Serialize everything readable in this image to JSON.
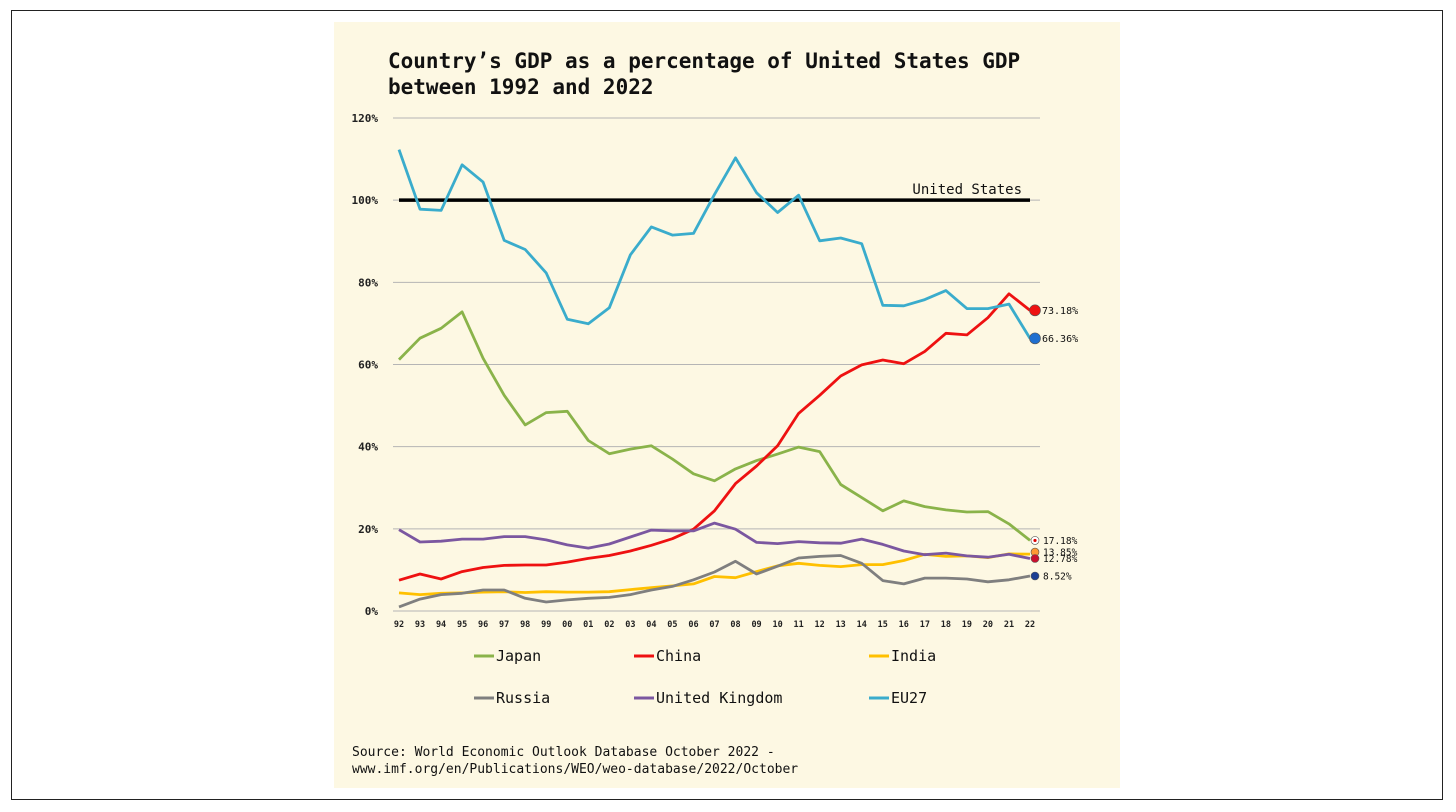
{
  "chart_data": {
    "type": "line",
    "title_lines": [
      "Country’s GDP as a percentage of United States GDP",
      "between 1992 and 2022"
    ],
    "x": [
      "92",
      "93",
      "94",
      "95",
      "96",
      "97",
      "98",
      "99",
      "00",
      "01",
      "02",
      "03",
      "04",
      "05",
      "06",
      "07",
      "08",
      "09",
      "10",
      "11",
      "12",
      "13",
      "14",
      "15",
      "16",
      "17",
      "18",
      "19",
      "20",
      "21",
      "22"
    ],
    "ylim": [
      0,
      120
    ],
    "yticks": [
      0,
      20,
      40,
      60,
      80,
      100,
      120
    ],
    "ytick_labels": [
      "0%",
      "20%",
      "40%",
      "60%",
      "80%",
      "100%",
      "120%"
    ],
    "grid": true,
    "reference_line": {
      "name": "United States",
      "value": 100,
      "color": "#000000"
    },
    "series": [
      {
        "name": "Japan",
        "color": "#8ab34a",
        "values": [
          61.2,
          66.4,
          68.8,
          72.8,
          61.5,
          52.5,
          45.3,
          48.3,
          48.6,
          41.5,
          38.3,
          39.4,
          40.2,
          37.0,
          33.4,
          31.7,
          34.6,
          36.6,
          38.2,
          39.9,
          38.8,
          30.8,
          27.6,
          24.4,
          26.8,
          25.4,
          24.6,
          24.1,
          24.2,
          21.2,
          17.18
        ]
      },
      {
        "name": "China",
        "color": "#ee1111",
        "values": [
          7.5,
          9.0,
          7.8,
          9.6,
          10.6,
          11.1,
          11.2,
          11.2,
          11.9,
          12.8,
          13.5,
          14.6,
          16.0,
          17.6,
          19.9,
          24.4,
          31.0,
          35.3,
          40.2,
          48.1,
          52.5,
          57.2,
          59.9,
          61.1,
          60.2,
          63.2,
          67.6,
          67.2,
          71.4,
          77.2,
          73.18
        ]
      },
      {
        "name": "India",
        "color": "#ffc000",
        "values": [
          4.4,
          4.0,
          4.3,
          4.4,
          4.6,
          4.7,
          4.5,
          4.7,
          4.6,
          4.6,
          4.7,
          5.2,
          5.7,
          6.1,
          6.6,
          8.4,
          8.1,
          9.6,
          11.0,
          11.6,
          11.1,
          10.8,
          11.3,
          11.3,
          12.3,
          13.8,
          13.3,
          13.4,
          13.0,
          13.9,
          13.85
        ]
      },
      {
        "name": "Russia",
        "color": "#7f7f7f",
        "values": [
          1.0,
          2.9,
          4.0,
          4.3,
          5.1,
          5.1,
          3.1,
          2.2,
          2.7,
          3.1,
          3.3,
          4.0,
          5.1,
          6.0,
          7.6,
          9.5,
          12.1,
          9.0,
          10.9,
          12.9,
          13.3,
          13.5,
          11.6,
          7.4,
          6.6,
          8.0,
          8.0,
          7.8,
          7.1,
          7.6,
          8.52
        ]
      },
      {
        "name": "United Kingdom",
        "color": "#7b57a0",
        "values": [
          19.8,
          16.8,
          17.0,
          17.5,
          17.5,
          18.1,
          18.1,
          17.3,
          16.1,
          15.3,
          16.3,
          18.0,
          19.7,
          19.5,
          19.5,
          21.4,
          19.9,
          16.7,
          16.4,
          16.9,
          16.6,
          16.5,
          17.5,
          16.2,
          14.6,
          13.7,
          14.1,
          13.4,
          13.1,
          13.8,
          12.78
        ]
      },
      {
        "name": "EU27",
        "color": "#3aaccc",
        "values": [
          112.3,
          97.8,
          97.5,
          108.6,
          104.4,
          90.2,
          88.0,
          82.3,
          71.0,
          69.9,
          73.8,
          86.7,
          93.5,
          91.5,
          91.9,
          101.4,
          110.3,
          101.8,
          97.0,
          101.2,
          90.1,
          90.8,
          89.4,
          74.4,
          74.3,
          75.8,
          78.0,
          73.6,
          73.6,
          74.7,
          66.36
        ]
      }
    ],
    "end_labels": [
      {
        "series": "China",
        "text": "73.18%"
      },
      {
        "series": "EU27",
        "text": "66.36%"
      },
      {
        "series": "Japan",
        "text": "17.18%"
      },
      {
        "series": "India",
        "text": "13.85%"
      },
      {
        "series": "United Kingdom",
        "text": "12.78%"
      },
      {
        "series": "Russia",
        "text": "8.52%"
      }
    ],
    "legend_placement": "bottom"
  },
  "source_lines": [
    "Source: World Economic Outlook Database October 2022 -",
    "www.imf.org/en/Publications/WEO/weo-database/2022/October"
  ]
}
